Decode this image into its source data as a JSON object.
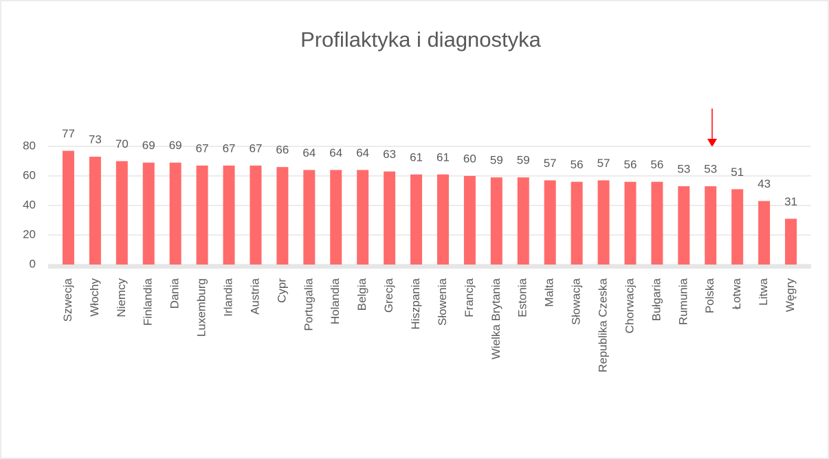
{
  "chart_data": {
    "type": "bar",
    "title": "Profilaktyka i diagnostyka",
    "categories": [
      "Szwecja",
      "Włochy",
      "Niemcy",
      "Finlandia",
      "Dania",
      "Luxemburg",
      "Irlandia",
      "Austria",
      "Cypr",
      "Portugalia",
      "Holandia",
      "Belgia",
      "Grecja",
      "Hiszpania",
      "Słowenia",
      "Francja",
      "Wielka Brytania",
      "Estonia",
      "Malta",
      "Słowacja",
      "Republika Czeska",
      "Chorwacja",
      "Bułgaria",
      "Rumunia",
      "Polska",
      "Łotwa",
      "Litwa",
      "Węgry"
    ],
    "values": [
      77,
      73,
      70,
      69,
      69,
      67,
      67,
      67,
      66,
      64,
      64,
      64,
      63,
      61,
      61,
      60,
      59,
      59,
      57,
      56,
      57,
      56,
      56,
      53,
      53,
      51,
      43,
      31
    ],
    "color": "#ff6b6b",
    "ylim": [
      0,
      80
    ],
    "yticks": [
      0,
      20,
      40,
      60,
      80
    ],
    "grid": true
  }
}
